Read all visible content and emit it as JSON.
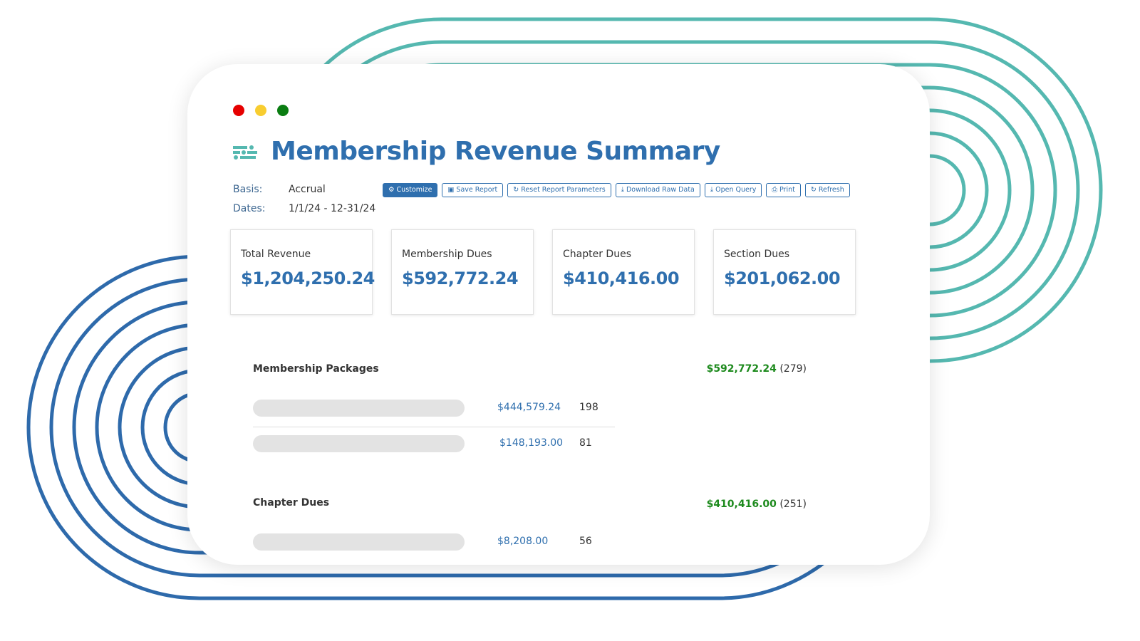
{
  "window": {
    "colors": {
      "close": "#e60000",
      "minimize": "#f8cd30",
      "maximize": "#0a7d12"
    }
  },
  "header": {
    "title": "Membership Revenue Summary",
    "icon": "sliders-icon"
  },
  "meta": {
    "basis_label": "Basis:",
    "basis_value": "Accrual",
    "dates_label": "Dates:",
    "dates_value": "1/1/24 - 12-31/24"
  },
  "toolbar": [
    {
      "label": "Customize",
      "icon": "cogs-icon"
    },
    {
      "label": "Save Report",
      "icon": "save-icon"
    },
    {
      "label": "Reset Report Parameters",
      "icon": "refresh-icon"
    },
    {
      "label": "Download Raw Data",
      "icon": "download-icon"
    },
    {
      "label": "Open Query",
      "icon": "download-icon"
    },
    {
      "label": "Print",
      "icon": "print-icon"
    },
    {
      "label": "Refresh",
      "icon": "refresh-icon"
    }
  ],
  "kpis": [
    {
      "label": "Total Revenue",
      "value": "$1,204,250.24"
    },
    {
      "label": "Membership Dues",
      "value": "$592,772.24"
    },
    {
      "label": "Chapter Dues",
      "value": "$410,416.00"
    },
    {
      "label": "Section Dues",
      "value": "$201,062.00"
    }
  ],
  "sections": [
    {
      "title": "Membership Packages",
      "total": "$592,772.24",
      "count": "(279)",
      "rows": [
        {
          "amount": "$444,579.24",
          "count": "198"
        },
        {
          "amount": "$148,193.00",
          "count": "81"
        }
      ]
    },
    {
      "title": "Chapter Dues",
      "total": "$410,416.00",
      "count": "(251)",
      "rows": [
        {
          "amount": "$8,208.00",
          "count": "56"
        }
      ]
    }
  ]
}
